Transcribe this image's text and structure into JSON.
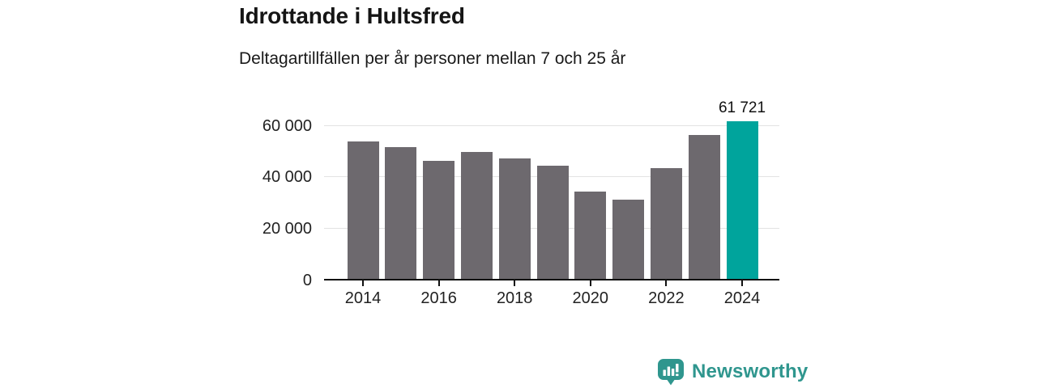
{
  "chart_data": {
    "type": "bar",
    "title": "Idrottande i Hultsfred",
    "subtitle": "Deltagartillfällen per år personer mellan 7 och 25 år",
    "categories": [
      2014,
      2015,
      2016,
      2017,
      2018,
      2019,
      2020,
      2021,
      2022,
      2023,
      2024
    ],
    "values": [
      53900,
      51600,
      46400,
      49900,
      47300,
      44400,
      34400,
      31400,
      43700,
      56400,
      61721
    ],
    "highlight_year": 2024,
    "annotation": {
      "year": 2024,
      "label": "61 721"
    },
    "y_ticks": [
      {
        "value": 0,
        "label": "0"
      },
      {
        "value": 20000,
        "label": "20 000"
      },
      {
        "value": 40000,
        "label": "40 000"
      },
      {
        "value": 60000,
        "label": "60 000"
      }
    ],
    "x_ticks": [
      {
        "value": 2014,
        "label": "2014"
      },
      {
        "value": 2016,
        "label": "2016"
      },
      {
        "value": 2018,
        "label": "2018"
      },
      {
        "value": 2020,
        "label": "2020"
      },
      {
        "value": 2022,
        "label": "2022"
      },
      {
        "value": 2024,
        "label": "2024"
      }
    ],
    "ylim": [
      0,
      60000
    ],
    "grid": true,
    "legend": false
  },
  "footer": {
    "brand": "Newsworthy"
  },
  "colors": {
    "bar": "#6d696e",
    "highlight": "#00a49c",
    "grid": "#e3e3e3",
    "axis": "#111111",
    "brand": "#2f968e"
  }
}
